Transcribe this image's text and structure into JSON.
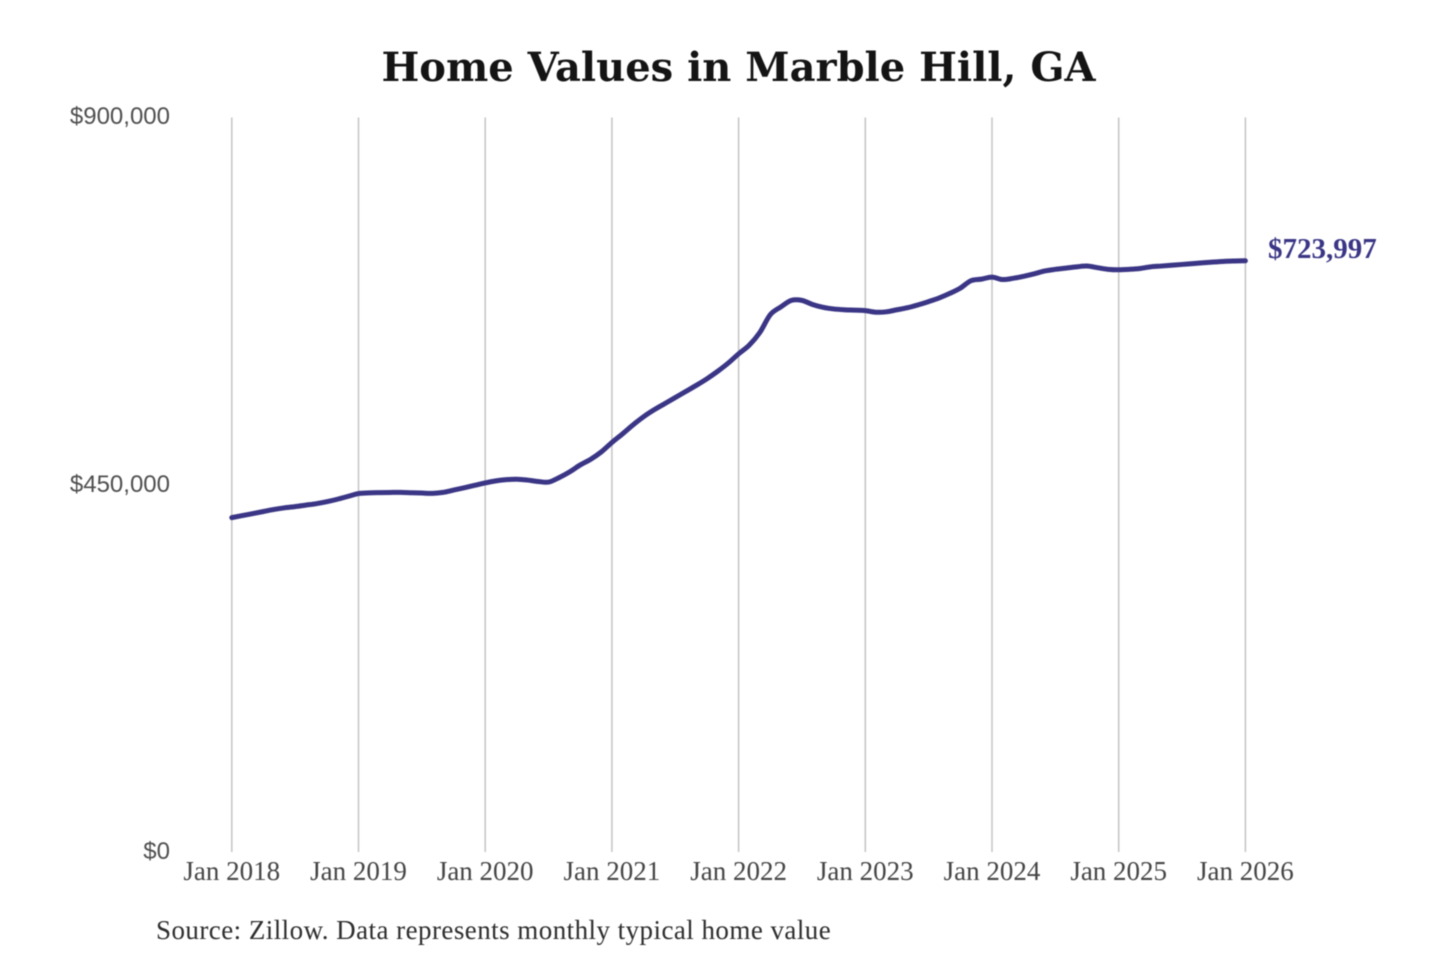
{
  "chart_data": {
    "type": "line",
    "title": "Home Values in Marble Hill, GA",
    "xlabel": "",
    "ylabel": "",
    "ylim": [
      0,
      900000
    ],
    "grid": "vertical-only",
    "y_ticks": [
      {
        "value": 0,
        "label": "$0"
      },
      {
        "value": 450000,
        "label": "$450,000"
      },
      {
        "value": 900000,
        "label": "$900,000"
      }
    ],
    "x_ticks": [
      "Jan 2018",
      "Jan 2019",
      "Jan 2020",
      "Jan 2021",
      "Jan 2022",
      "Jan 2023",
      "Jan 2024",
      "Jan 2025",
      "Jan 2026"
    ],
    "series_name": "Monthly typical home value",
    "x_start": "Jan 2018",
    "x_end": "Jan 2026",
    "x_frequency": "monthly",
    "values": [
      409500,
      412000,
      414500,
      417000,
      419500,
      421500,
      423000,
      424800,
      426600,
      429000,
      432000,
      435500,
      439000,
      439800,
      440100,
      440300,
      440400,
      440000,
      439600,
      439200,
      440400,
      443200,
      446000,
      449000,
      452000,
      454500,
      456000,
      456500,
      455500,
      453800,
      453000,
      458500,
      465500,
      474000,
      481000,
      490000,
      501500,
      512000,
      523000,
      533000,
      541500,
      549000,
      556500,
      564000,
      571500,
      579500,
      588500,
      598500,
      610000,
      620500,
      636000,
      658000,
      667500,
      675500,
      675500,
      670500,
      667000,
      665000,
      664000,
      663500,
      663000,
      661000,
      661500,
      664000,
      666500,
      670000,
      674000,
      678500,
      684000,
      690500,
      699500,
      701500,
      704000,
      701000,
      702500,
      705000,
      708000,
      711500,
      713500,
      715000,
      716500,
      717500,
      715500,
      713500,
      713000,
      713500,
      714500,
      716500,
      717500,
      718500,
      719500,
      720500,
      721500,
      722500,
      723300,
      723700,
      723997
    ],
    "end_label": "$723,997",
    "source_note": "Source: Zillow. Data represents monthly typical home value",
    "colors": {
      "line": "#3a3585",
      "grid": "#c7c7c7",
      "title": "#141414",
      "y_tick_labels": "#4f4f4f",
      "x_tick_labels": "#454545",
      "annotation": "#3a3585",
      "footnote": "#2e2e2e",
      "background": "#ffffff"
    }
  }
}
